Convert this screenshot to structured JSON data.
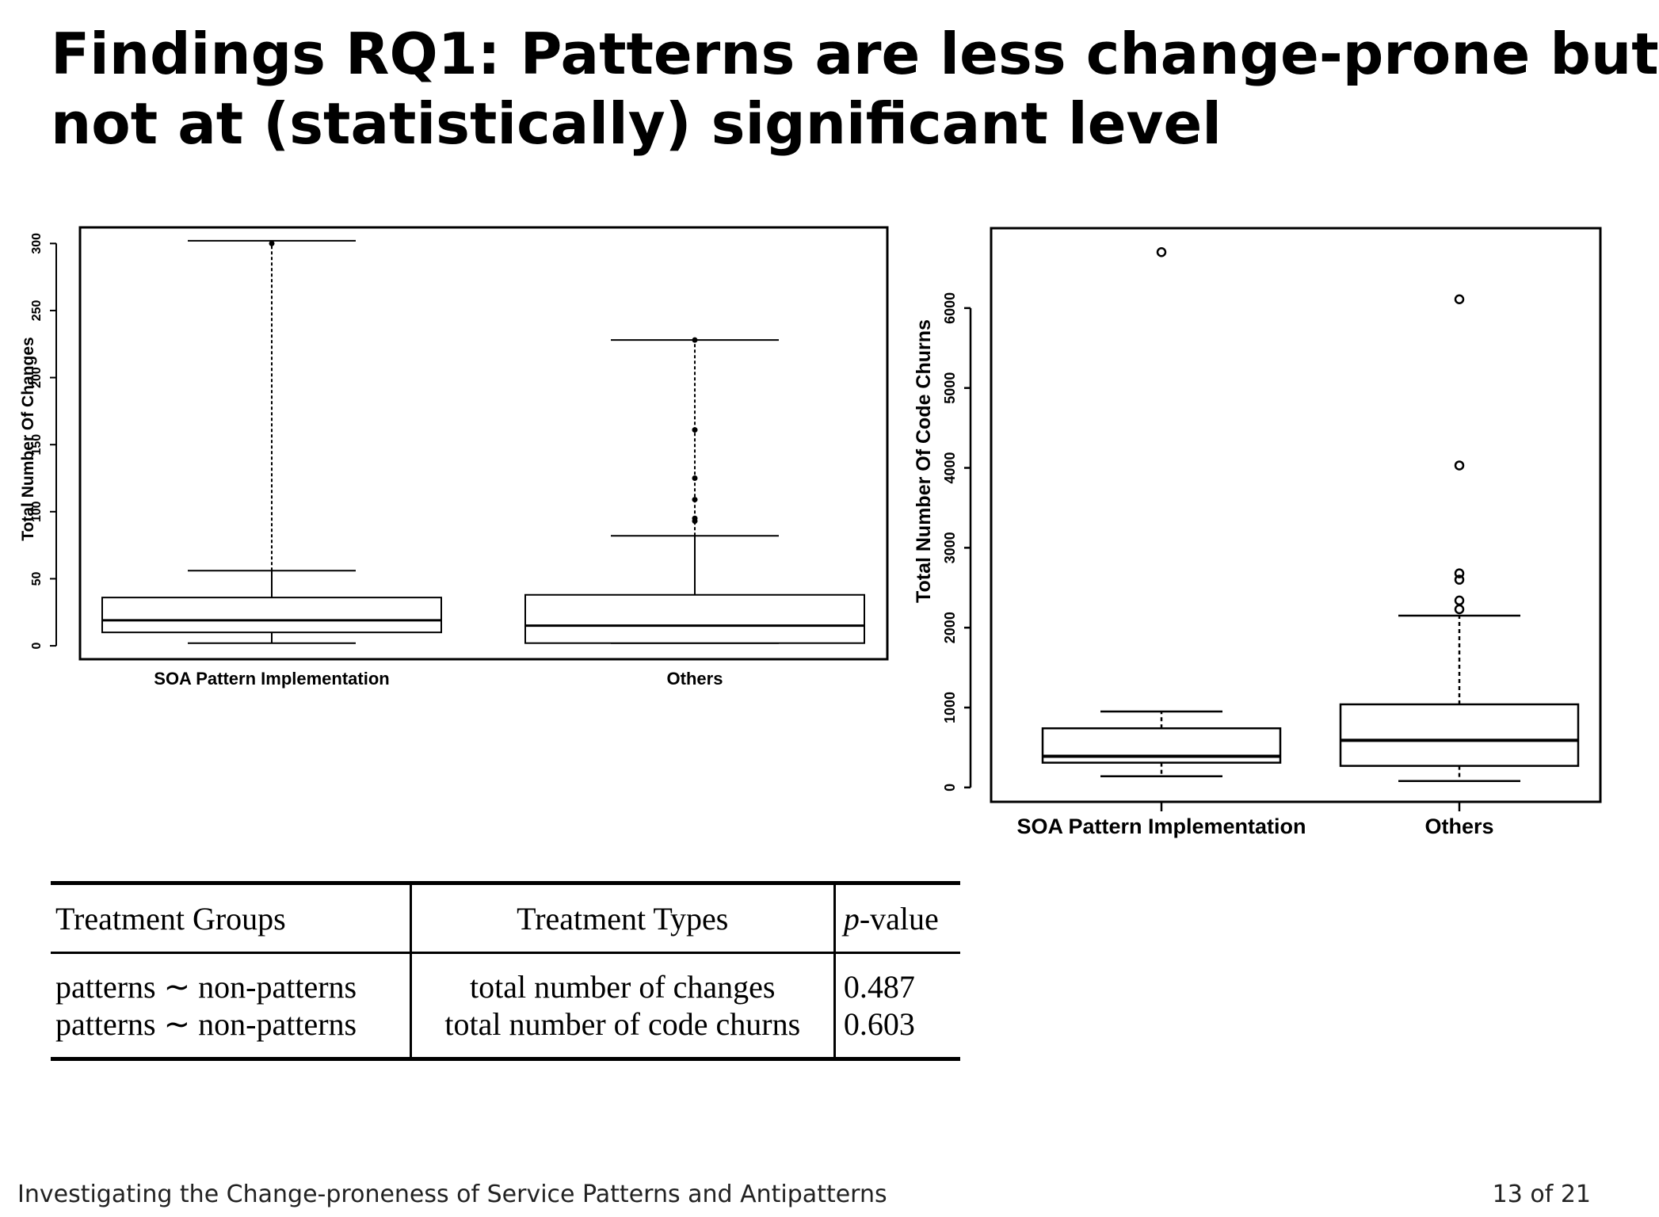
{
  "slide": {
    "title_line1": "Findings RQ1: Patterns are less change-prone but",
    "title_line2": "not at (statistically) significant level",
    "footer_title": "Investigating the Change-proneness of Service Patterns and Antipatterns",
    "page_number": "13 of 21"
  },
  "chart_data": [
    {
      "type": "boxplot",
      "title": "",
      "xlabel": "",
      "ylabel": "Total Number Of Changes",
      "ylim": [
        -10,
        312
      ],
      "yticks": [
        0,
        50,
        100,
        150,
        200,
        250,
        300
      ],
      "categories": [
        "SOA Pattern Implementation",
        "Others"
      ],
      "boxes": [
        {
          "label": "SOA Pattern Implementation",
          "whisker_low": 2,
          "q1": 10,
          "median": 19,
          "q3": 36,
          "whisker_high": 56,
          "cap_high": 302,
          "outliers": [
            300
          ]
        },
        {
          "label": "Others",
          "whisker_low": 2,
          "q1": 2,
          "median": 15,
          "q3": 38,
          "whisker_high": 82,
          "cap_high": 228,
          "outliers": [
            93,
            95,
            109,
            125,
            161,
            228
          ]
        }
      ]
    },
    {
      "type": "boxplot",
      "title": "",
      "xlabel": "",
      "ylabel": "Total Number Of Code Churns",
      "ylim": [
        -180,
        7000
      ],
      "yticks": [
        0,
        1000,
        2000,
        3000,
        4000,
        5000,
        6000
      ],
      "categories": [
        "SOA Pattern Implementation",
        "Others"
      ],
      "boxes": [
        {
          "label": "SOA Pattern Implementation",
          "whisker_low": 140,
          "q1": 310,
          "median": 390,
          "q3": 740,
          "whisker_high": 950,
          "outliers": [
            6700
          ]
        },
        {
          "label": "Others",
          "whisker_low": 80,
          "q1": 270,
          "median": 590,
          "q3": 1040,
          "whisker_high": 2150,
          "outliers": [
            2230,
            2340,
            2600,
            2680,
            4030,
            6110
          ]
        }
      ]
    }
  ],
  "table": {
    "headers": [
      "Treatment Groups",
      "Treatment Types",
      "p-value"
    ],
    "rows": [
      {
        "group": "patterns ∼ non-patterns",
        "type": "total number of changes",
        "p": "0.487"
      },
      {
        "group": "patterns ∼ non-patterns",
        "type": "total number of code churns",
        "p": "0.603"
      }
    ]
  }
}
